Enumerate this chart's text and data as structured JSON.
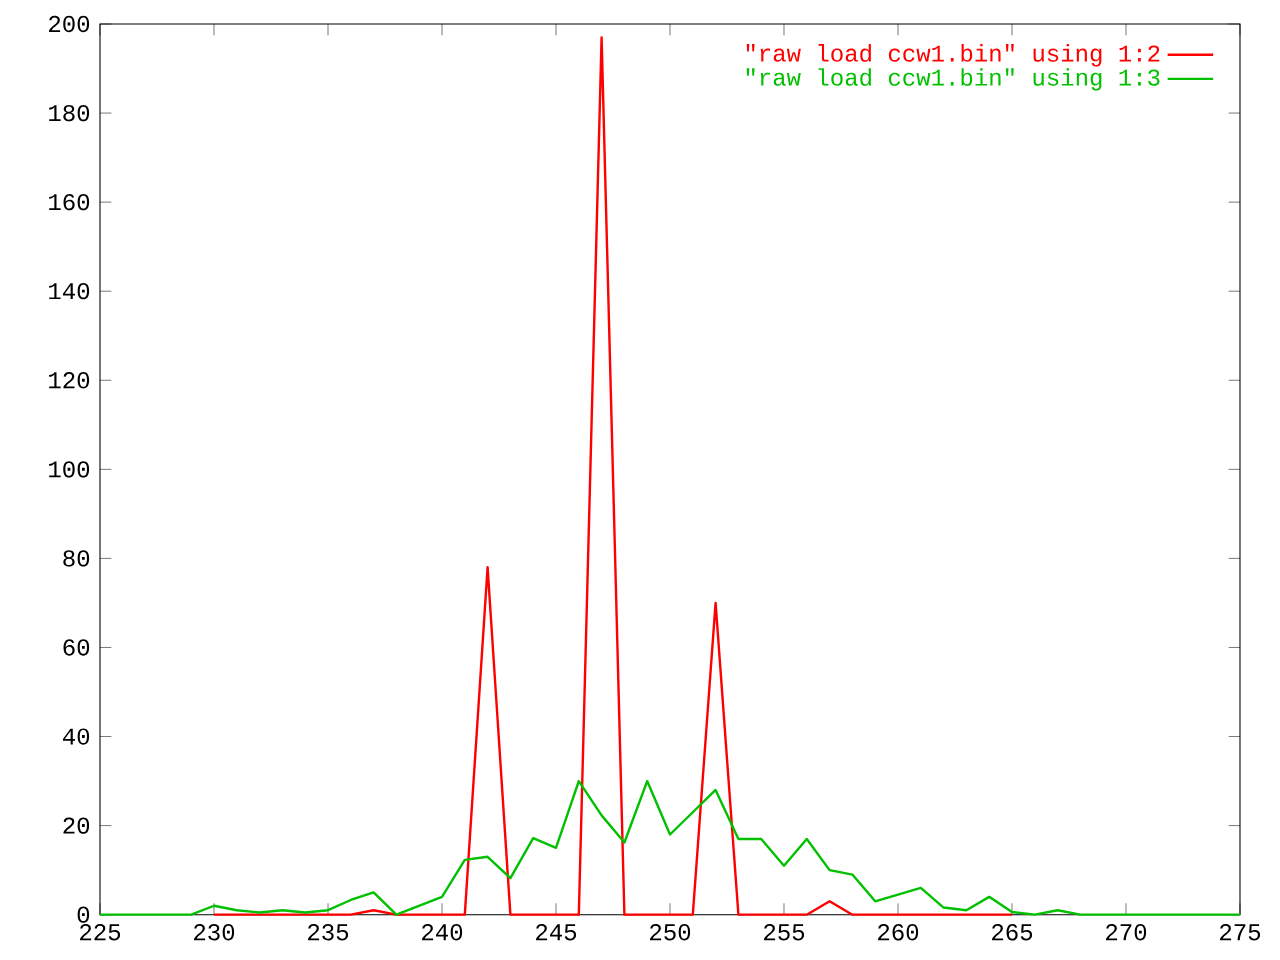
{
  "chart_data": {
    "type": "line",
    "x": [
      225,
      226,
      227,
      228,
      229,
      230,
      231,
      232,
      233,
      234,
      235,
      236,
      237,
      238,
      239,
      240,
      241,
      242,
      243,
      244,
      245,
      246,
      247,
      248,
      249,
      250,
      251,
      252,
      253,
      254,
      255,
      256,
      257,
      258,
      259,
      260,
      261,
      262,
      263,
      264,
      265,
      266,
      267,
      268,
      269,
      270,
      271,
      272,
      273,
      274,
      275
    ],
    "series": [
      {
        "name": "\"raw load ccw1.bin\" using 1:2",
        "color": "#ff0000",
        "values": [
          null,
          null,
          null,
          null,
          null,
          0,
          0,
          0,
          0,
          0,
          0,
          0,
          1,
          0,
          0,
          0,
          0,
          78,
          0,
          0,
          0,
          0,
          197,
          0,
          0,
          0,
          0,
          70,
          0,
          0,
          0,
          0,
          3,
          0,
          0,
          0,
          0,
          0,
          0,
          0,
          0,
          null,
          null,
          null,
          null,
          null,
          null,
          null,
          null,
          null,
          null
        ]
      },
      {
        "name": "\"raw load ccw1.bin\" using 1:3",
        "color": "#00c000",
        "values": [
          0,
          0,
          0,
          0,
          0,
          2,
          1,
          0.5,
          1,
          0.5,
          1,
          3.3,
          5,
          0,
          2,
          4,
          12.3,
          13,
          8.2,
          17.2,
          15,
          30,
          22.3,
          16.2,
          30,
          18,
          23,
          28,
          17,
          17,
          11,
          17,
          10,
          9,
          3,
          4.5,
          6,
          1.6,
          1,
          4,
          0.6,
          0,
          1,
          0,
          0,
          0,
          0,
          0,
          0,
          0,
          0
        ]
      }
    ],
    "xlim": [
      225,
      275
    ],
    "ylim": [
      0,
      200
    ],
    "xticks": [
      225,
      230,
      235,
      240,
      245,
      250,
      255,
      260,
      265,
      270,
      275
    ],
    "yticks": [
      0,
      20,
      40,
      60,
      80,
      100,
      120,
      140,
      160,
      180,
      200
    ],
    "grid": false,
    "legend": "top right",
    "marker": "none",
    "line_style": "solid"
  }
}
